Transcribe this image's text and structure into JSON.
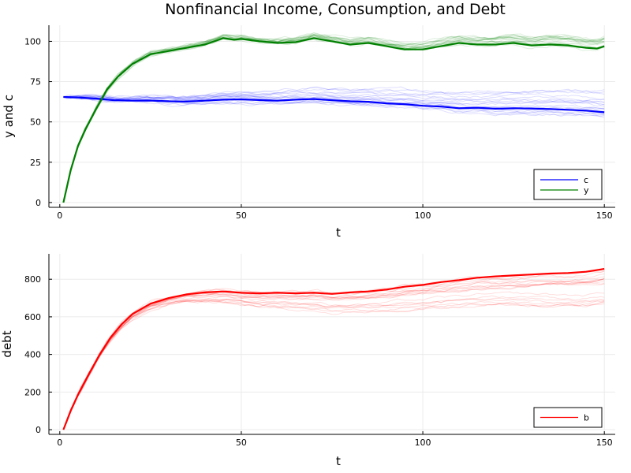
{
  "title": "Nonfinancial Income, Consumption, and Debt",
  "colors": {
    "c": "#0000ff",
    "y": "#008000",
    "b": "#ff0000",
    "grid": "#ebebeb",
    "axis": "#000000"
  },
  "chart_data": [
    {
      "type": "line",
      "title": "Nonfinancial Income, Consumption, and Debt",
      "xlabel": "t",
      "ylabel": "y and c",
      "xlim": [
        -3,
        153
      ],
      "ylim": [
        -3,
        110
      ],
      "xticks": [
        0,
        50,
        100,
        150
      ],
      "yticks": [
        0,
        25,
        50,
        75,
        100
      ],
      "grid": true,
      "legend_position": "bottom-right",
      "legend": [
        "c",
        "y"
      ],
      "background_paths": "many faint simulated paths per series (about 20 each), lightly drawn",
      "series": [
        {
          "name": "c",
          "color": "#0000ff",
          "x": [
            1,
            5,
            10,
            15,
            20,
            25,
            30,
            35,
            40,
            45,
            50,
            55,
            60,
            65,
            70,
            75,
            80,
            85,
            90,
            95,
            100,
            105,
            110,
            115,
            120,
            125,
            130,
            135,
            140,
            145,
            150
          ],
          "values": [
            65.5,
            65.2,
            64.5,
            63.5,
            63.2,
            63.3,
            62.8,
            62.6,
            63.2,
            63.8,
            64.0,
            63.6,
            63.2,
            63.8,
            64.2,
            63.5,
            62.8,
            62.5,
            61.5,
            61.0,
            60.0,
            59.5,
            58.5,
            58.8,
            58.2,
            58.5,
            58.3,
            58.0,
            57.5,
            57.0,
            56.0
          ]
        },
        {
          "name": "y",
          "color": "#008000",
          "x": [
            1,
            3,
            5,
            7,
            10,
            13,
            16,
            20,
            25,
            30,
            35,
            40,
            45,
            48,
            50,
            55,
            60,
            65,
            70,
            75,
            80,
            85,
            90,
            95,
            100,
            105,
            110,
            115,
            120,
            125,
            130,
            135,
            140,
            145,
            148,
            150
          ],
          "values": [
            0,
            20,
            35,
            45,
            58,
            70,
            78,
            86,
            92,
            94,
            96,
            98,
            102,
            101,
            101.5,
            100,
            99,
            99.5,
            102,
            100,
            98,
            99,
            97,
            95,
            95,
            97,
            99,
            98,
            98,
            99,
            97.5,
            98,
            97.5,
            96,
            95.5,
            97
          ]
        }
      ]
    },
    {
      "type": "line",
      "title": "",
      "xlabel": "t",
      "ylabel": "debt",
      "xlim": [
        -3,
        153
      ],
      "ylim": [
        -25,
        935
      ],
      "xticks": [
        0,
        50,
        100,
        150
      ],
      "yticks": [
        0,
        200,
        400,
        600,
        800
      ],
      "grid": true,
      "legend_position": "bottom-right",
      "legend": [
        "b"
      ],
      "background_paths": "many faint simulated paths (about 20), lightly drawn",
      "series": [
        {
          "name": "b",
          "color": "#ff0000",
          "x": [
            1,
            3,
            5,
            8,
            11,
            14,
            17,
            20,
            25,
            30,
            35,
            40,
            45,
            50,
            55,
            60,
            65,
            70,
            75,
            80,
            85,
            90,
            95,
            100,
            105,
            110,
            115,
            120,
            125,
            130,
            135,
            140,
            145,
            150
          ],
          "values": [
            0,
            100,
            185,
            295,
            400,
            490,
            560,
            615,
            670,
            700,
            720,
            730,
            735,
            728,
            725,
            728,
            725,
            728,
            722,
            730,
            735,
            745,
            760,
            770,
            785,
            795,
            808,
            815,
            820,
            825,
            830,
            833,
            840,
            855
          ]
        }
      ]
    }
  ]
}
